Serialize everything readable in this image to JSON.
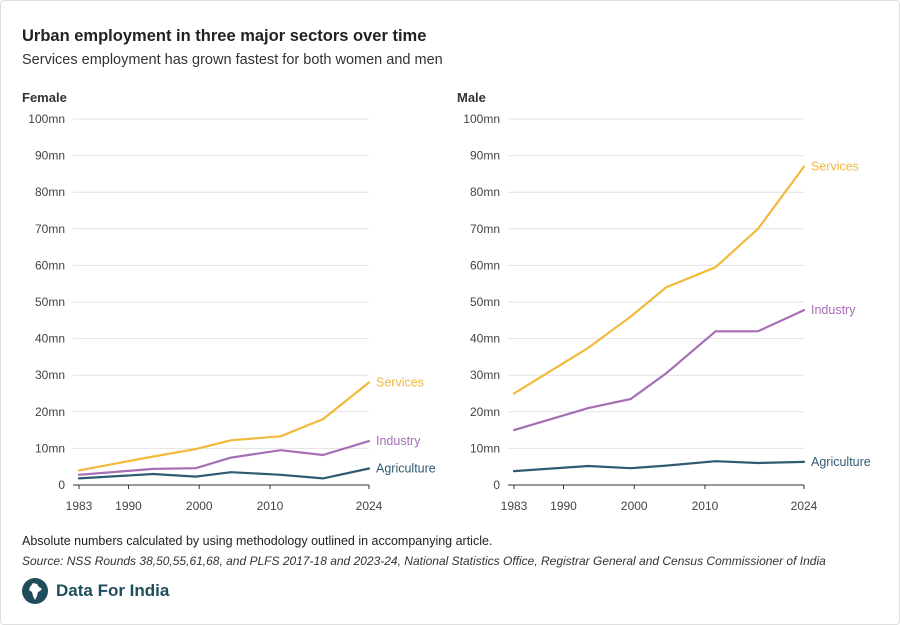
{
  "title": "Urban employment in three major sectors over time",
  "subtitle": "Services employment has grown fastest for both women and men",
  "note": "Absolute numbers calculated by using methodology outlined in accompanying article.",
  "source": "Source: NSS Rounds 38,50,55,61,68, and PLFS 2017-18 and 2023-24, National Statistics Office, Registrar General and Census Commissioner of India",
  "brand": {
    "name": "Data For India",
    "logo_icon": "india-map-icon"
  },
  "colors": {
    "services": "#f2b93b",
    "industry": "#a66fb5",
    "agriculture": "#2f5b72",
    "grid": "#e3e3e3",
    "axis": "#333333"
  },
  "chart_data": [
    {
      "type": "line",
      "title": "Female",
      "x": [
        1983,
        1993.5,
        1999.5,
        2004.5,
        2011.5,
        2017.5,
        2024
      ],
      "xticks": [
        "1983",
        "1990",
        "2000",
        "2010",
        "2024"
      ],
      "xtick_values": [
        1983,
        1990,
        2000,
        2010,
        2024
      ],
      "yticks": [
        "0",
        "10mn",
        "20mn",
        "30mn",
        "40mn",
        "50mn",
        "60mn",
        "70mn",
        "80mn",
        "90mn",
        "100mn"
      ],
      "ylim": [
        0,
        100
      ],
      "grid": true,
      "series": [
        {
          "name": "Services",
          "color_key": "services",
          "values": [
            4,
            7.8,
            9.8,
            12.2,
            13.3,
            18,
            28
          ]
        },
        {
          "name": "Industry",
          "color_key": "industry",
          "values": [
            2.8,
            4.4,
            4.6,
            7.5,
            9.5,
            8.2,
            12
          ]
        },
        {
          "name": "Agriculture",
          "color_key": "agriculture",
          "values": [
            1.8,
            3,
            2.3,
            3.5,
            2.8,
            1.8,
            4.5
          ]
        }
      ]
    },
    {
      "type": "line",
      "title": "Male",
      "x": [
        1983,
        1993.5,
        1999.5,
        2004.5,
        2011.5,
        2017.5,
        2024
      ],
      "xticks": [
        "1983",
        "1990",
        "2000",
        "2010",
        "2024"
      ],
      "xtick_values": [
        1983,
        1990,
        2000,
        2010,
        2024
      ],
      "yticks": [
        "0",
        "10mn",
        "20mn",
        "30mn",
        "40mn",
        "50mn",
        "60mn",
        "70mn",
        "80mn",
        "90mn",
        "100mn"
      ],
      "ylim": [
        0,
        100
      ],
      "grid": true,
      "series": [
        {
          "name": "Services",
          "color_key": "services",
          "values": [
            25,
            37.5,
            46,
            54,
            59.5,
            70,
            87
          ]
        },
        {
          "name": "Industry",
          "color_key": "industry",
          "values": [
            15,
            21,
            23.5,
            30.5,
            42,
            42,
            47.8
          ]
        },
        {
          "name": "Agriculture",
          "color_key": "agriculture",
          "values": [
            3.8,
            5.2,
            4.6,
            5.3,
            6.5,
            6,
            6.3
          ]
        }
      ]
    }
  ]
}
